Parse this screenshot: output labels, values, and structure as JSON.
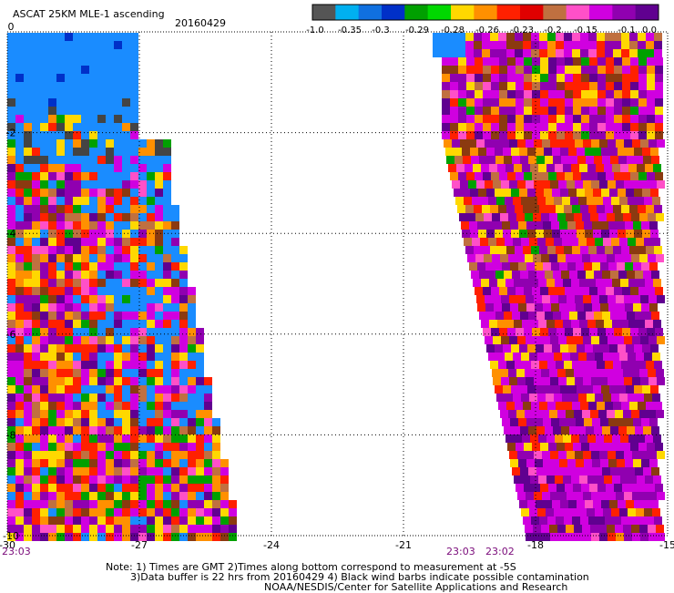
{
  "header": {
    "title": "ASCAT 25KM MLE-1 ascending",
    "date": "20160429"
  },
  "colorbar": {
    "labels": [
      "-1.0",
      "-0.35",
      "-0.3",
      "-0.29",
      "-0.28",
      "-0.26",
      "-0.23",
      "-0.2",
      "-0.15",
      "-0.1",
      "0.0"
    ],
    "colors": [
      "#555555",
      "#00b0f0",
      "#1070e0",
      "#0030c8",
      "#00a000",
      "#00d800",
      "#ffd800",
      "#ff9000",
      "#ff2000",
      "#e00000",
      "#c07040",
      "#ff50c8",
      "#d000e0",
      "#9000b0",
      "#600090"
    ]
  },
  "chart_data": {
    "type": "heatmap",
    "title": "ASCAT 25KM MLE-1 ascending",
    "date": "20160429",
    "xlim": [
      -30,
      -15
    ],
    "ylim": [
      -10,
      0
    ],
    "x_ticks": [
      "-30",
      "-27",
      "-24",
      "-21",
      "-18",
      "-15"
    ],
    "y_ticks": [
      "0",
      "-2",
      "-4",
      "-6",
      "-8",
      "-10"
    ],
    "grid": true,
    "pass_times": {
      "left": "23:03",
      "right_a": "23:03",
      "right_b": "23:02"
    }
  },
  "notes": {
    "line1": "Note: 1) Times are GMT 2)Times along bottom correspond to measurement at -5S",
    "line2": "3)Data buffer is 22 hrs from 20160429 4) Black wind barbs indicate possible contamination",
    "line3": "NOAA/NESDIS/Center for Satellite Applications and Research"
  }
}
